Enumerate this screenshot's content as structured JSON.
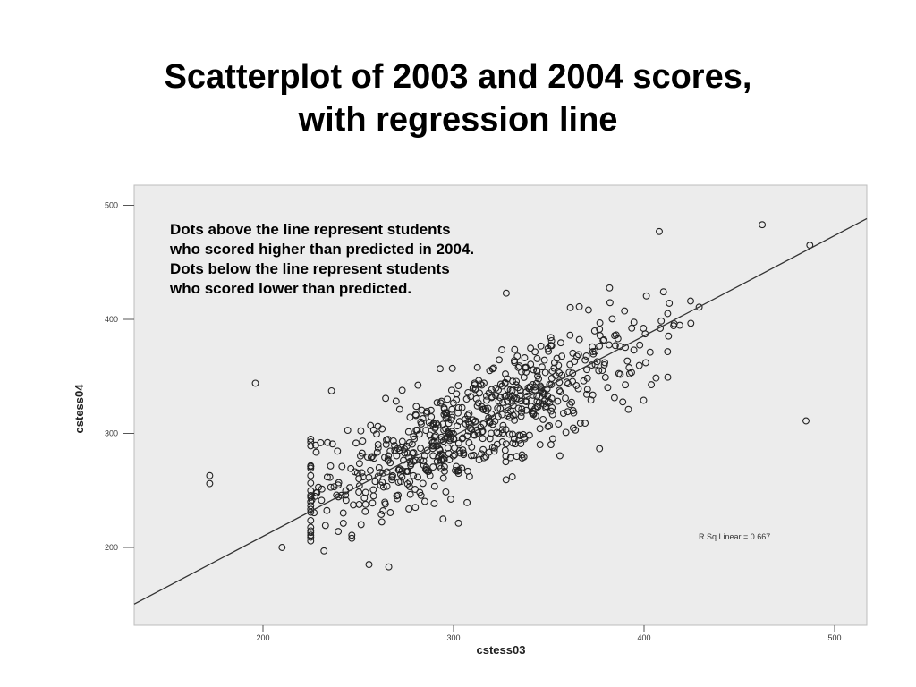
{
  "title": {
    "line1": "Scatterplot of 2003 and 2004 scores,",
    "line2": "with regression line"
  },
  "annotation": {
    "lines": [
      "Dots above the line represent students",
      "who scored higher than predicted in 2004.",
      "Dots below the line represent students",
      "who scored lower than predicted."
    ]
  },
  "colors": {
    "plot_background": "#ececec",
    "marker": "#222222",
    "line": "#333333"
  },
  "chart_data": {
    "type": "scatter",
    "xlabel": "cstess03",
    "ylabel": "cstess04",
    "xlim": [
      140,
      520
    ],
    "ylim": [
      140,
      520
    ],
    "xticks": [
      200,
      300,
      400,
      500
    ],
    "yticks": [
      200,
      300,
      400,
      500
    ],
    "grid": false,
    "marker": "open-circle",
    "regression_line": {
      "label": "R Sq Linear = 0.667",
      "points": [
        [
          140,
          157
        ],
        [
          520,
          491
        ]
      ]
    },
    "annotation": "R Sq Linear = 0.667",
    "points_count": 700,
    "outliers": [
      {
        "x": 172,
        "y": 263
      },
      {
        "x": 172,
        "y": 256
      },
      {
        "x": 196,
        "y": 344
      },
      {
        "x": 210,
        "y": 200
      },
      {
        "x": 485,
        "y": 311
      },
      {
        "x": 462,
        "y": 483
      },
      {
        "x": 487,
        "y": 465
      },
      {
        "x": 408,
        "y": 477
      },
      {
        "x": 266,
        "y": 183
      },
      {
        "x": 232,
        "y": 197
      }
    ]
  }
}
